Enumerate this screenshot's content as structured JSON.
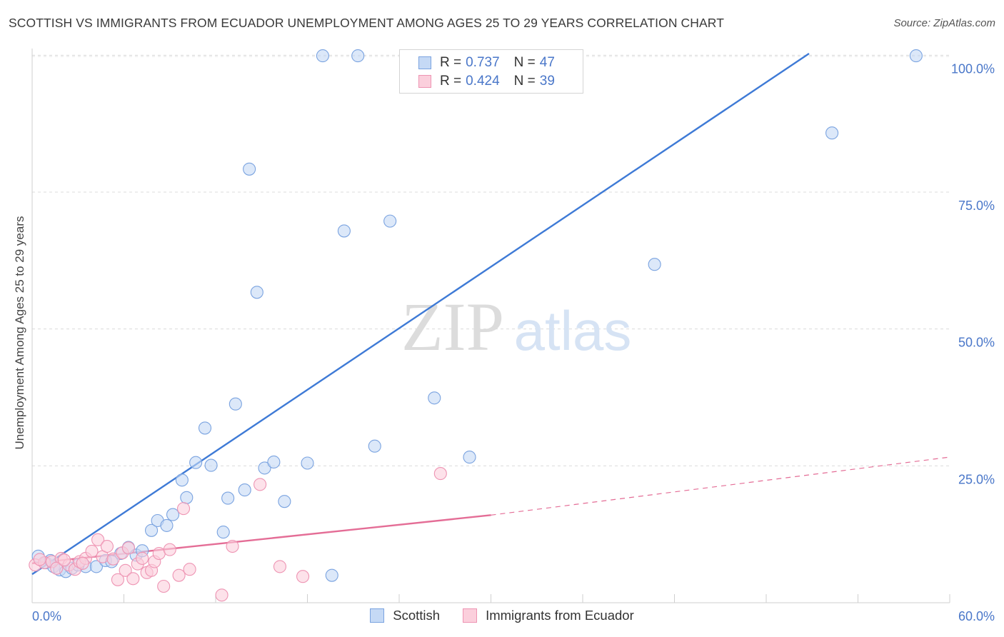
{
  "title": "SCOTTISH VS IMMIGRANTS FROM ECUADOR UNEMPLOYMENT AMONG AGES 25 TO 29 YEARS CORRELATION CHART",
  "source": "Source: ZipAtlas.com",
  "watermark": {
    "zip": "ZIP",
    "atlas": "atlas"
  },
  "legend": {
    "rows": [
      {
        "r_label": "R =",
        "r_value": "0.737",
        "n_label": "N =",
        "n_value": "47",
        "fill": "#c5d9f5",
        "stroke": "#7aa3e0"
      },
      {
        "r_label": "R =",
        "r_value": "0.424",
        "n_label": "N =",
        "n_value": "39",
        "fill": "#fbcfdc",
        "stroke": "#ee94b3"
      }
    ]
  },
  "bottom_legend": [
    {
      "label": "Scottish",
      "fill": "#c5d9f5",
      "stroke": "#7aa3e0"
    },
    {
      "label": "Immigrants from Ecuador",
      "fill": "#fbcfdc",
      "stroke": "#ee94b3"
    }
  ],
  "chart_data": {
    "type": "scatter",
    "title": "SCOTTISH VS IMMIGRANTS FROM ECUADOR UNEMPLOYMENT AMONG AGES 25 TO 29 YEARS CORRELATION CHART",
    "xlabel": "",
    "ylabel": "Unemployment Among Ages 25 to 29 years",
    "xlim": [
      0,
      60
    ],
    "ylim": [
      0,
      102
    ],
    "x_tick_labels": [
      "0.0%",
      "60.0%"
    ],
    "y_ticks": [
      25,
      50,
      75,
      100
    ],
    "y_tick_labels": [
      "25.0%",
      "50.0%",
      "75.0%",
      "100.0%"
    ],
    "grid": true,
    "series": [
      {
        "name": "Scottish",
        "color": "#3e7ad6",
        "fill": "#c5d9f5",
        "stroke": "#7aa3e0",
        "points": [
          [
            0.4,
            8.5
          ],
          [
            0.9,
            7.3
          ],
          [
            1.4,
            6.6
          ],
          [
            1.8,
            6.0
          ],
          [
            2.2,
            5.7
          ],
          [
            2.6,
            6.3
          ],
          [
            3.5,
            6.6
          ],
          [
            4.2,
            6.6
          ],
          [
            4.8,
            7.7
          ],
          [
            5.2,
            7.5
          ],
          [
            5.8,
            9.0
          ],
          [
            6.3,
            10.1
          ],
          [
            6.8,
            8.7
          ],
          [
            7.2,
            9.5
          ],
          [
            7.8,
            13.2
          ],
          [
            8.2,
            15.0
          ],
          [
            8.8,
            14.1
          ],
          [
            9.2,
            16.1
          ],
          [
            9.8,
            22.4
          ],
          [
            10.1,
            19.2
          ],
          [
            10.7,
            25.6
          ],
          [
            11.3,
            31.9
          ],
          [
            11.7,
            25.1
          ],
          [
            12.5,
            12.9
          ],
          [
            12.8,
            19.1
          ],
          [
            13.3,
            36.3
          ],
          [
            13.9,
            20.6
          ],
          [
            14.2,
            79.2
          ],
          [
            14.7,
            56.7
          ],
          [
            15.2,
            24.6
          ],
          [
            15.8,
            25.7
          ],
          [
            16.5,
            18.5
          ],
          [
            18.0,
            25.5
          ],
          [
            19.0,
            99.9
          ],
          [
            19.6,
            5.0
          ],
          [
            20.4,
            67.9
          ],
          [
            21.3,
            99.9
          ],
          [
            22.4,
            28.6
          ],
          [
            23.4,
            69.7
          ],
          [
            26.3,
            37.4
          ],
          [
            26.6,
            99.9
          ],
          [
            28.6,
            26.6
          ],
          [
            40.7,
            61.8
          ],
          [
            52.3,
            85.8
          ],
          [
            57.8,
            99.9
          ],
          [
            1.2,
            7.7
          ],
          [
            3.0,
            6.9
          ]
        ]
      },
      {
        "name": "Immigrants from Ecuador",
        "color": "#e46d96",
        "fill": "#fbcfdc",
        "stroke": "#ee94b3",
        "points": [
          [
            0.2,
            6.9
          ],
          [
            0.8,
            7.3
          ],
          [
            1.3,
            7.5
          ],
          [
            1.9,
            8.1
          ],
          [
            2.4,
            6.9
          ],
          [
            2.8,
            6.1
          ],
          [
            3.1,
            7.5
          ],
          [
            3.5,
            8.1
          ],
          [
            3.9,
            9.4
          ],
          [
            4.3,
            11.5
          ],
          [
            4.6,
            8.4
          ],
          [
            4.9,
            10.3
          ],
          [
            5.3,
            8.0
          ],
          [
            5.6,
            4.2
          ],
          [
            5.9,
            9.1
          ],
          [
            6.1,
            5.9
          ],
          [
            6.3,
            10.0
          ],
          [
            6.6,
            4.4
          ],
          [
            6.9,
            7.1
          ],
          [
            7.2,
            8.1
          ],
          [
            7.5,
            5.5
          ],
          [
            7.8,
            5.9
          ],
          [
            8.0,
            7.5
          ],
          [
            8.3,
            9.0
          ],
          [
            8.6,
            3.0
          ],
          [
            9.0,
            9.7
          ],
          [
            9.6,
            5.0
          ],
          [
            9.9,
            17.2
          ],
          [
            10.3,
            6.1
          ],
          [
            12.4,
            1.4
          ],
          [
            13.1,
            10.3
          ],
          [
            14.9,
            21.6
          ],
          [
            16.2,
            6.6
          ],
          [
            17.7,
            4.8
          ],
          [
            26.7,
            23.6
          ],
          [
            1.6,
            6.3
          ],
          [
            2.1,
            7.8
          ],
          [
            0.5,
            7.9
          ],
          [
            3.3,
            7.2
          ]
        ]
      }
    ],
    "trendlines": [
      {
        "series": "Scottish",
        "x": [
          0,
          50.8
        ],
        "y": [
          5.2,
          100.3
        ],
        "style": "solid"
      },
      {
        "series": "Immigrants from Ecuador",
        "x": [
          0,
          30
        ],
        "y": [
          7.2,
          16.0
        ],
        "style": "solid"
      },
      {
        "series": "Immigrants from Ecuador",
        "x": [
          30,
          60
        ],
        "y": [
          16.0,
          26.6
        ],
        "style": "dashed"
      }
    ]
  }
}
